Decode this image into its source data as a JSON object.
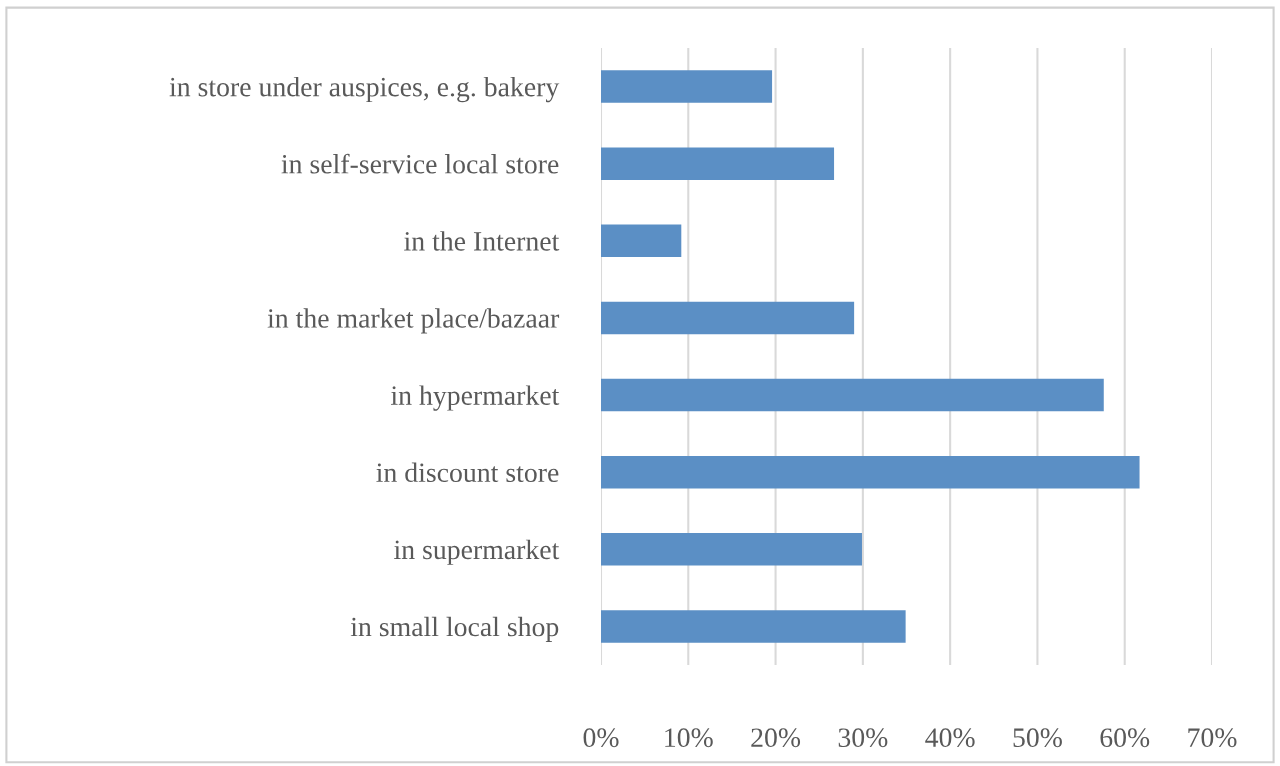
{
  "chart_data": {
    "type": "bar",
    "orientation": "horizontal",
    "categories": [
      "in store under auspices, e.g. bakery",
      "in self-service local store",
      "in the Internet",
      "in the market place/bazaar",
      "in hypermarket",
      "in discount store",
      "in supermarket",
      "in small local shop"
    ],
    "values": [
      19.6,
      26.7,
      9.2,
      29.0,
      57.6,
      61.7,
      29.9,
      34.9
    ],
    "color": "#5b8fc5",
    "xlim": [
      0,
      70
    ],
    "xticks": [
      {
        "value": 0,
        "label": "0%"
      },
      {
        "value": 10,
        "label": "10%"
      },
      {
        "value": 20,
        "label": "20%"
      },
      {
        "value": 30,
        "label": "30%"
      },
      {
        "value": 40,
        "label": "40%"
      },
      {
        "value": 50,
        "label": "50%"
      },
      {
        "value": 60,
        "label": "60%"
      },
      {
        "value": 70,
        "label": "70%"
      }
    ],
    "grid": "x"
  }
}
